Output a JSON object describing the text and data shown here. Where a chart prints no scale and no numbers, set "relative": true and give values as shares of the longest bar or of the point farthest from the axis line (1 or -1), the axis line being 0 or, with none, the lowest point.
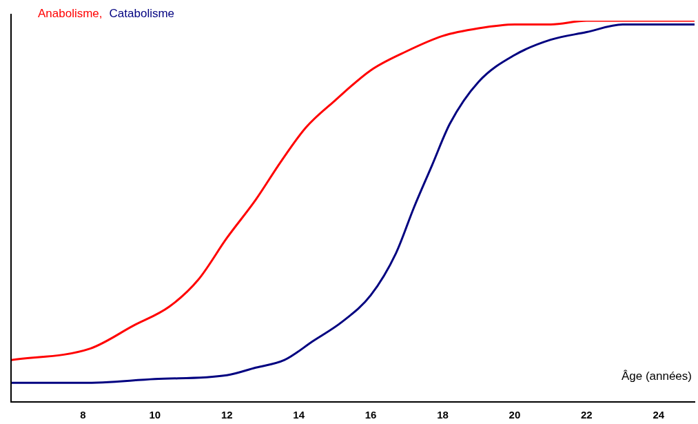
{
  "chart_data": {
    "type": "line",
    "xlabel": "Âge (années)",
    "relative": true,
    "xlim": [
      6,
      25
    ],
    "xticks": [
      8,
      10,
      12,
      14,
      16,
      18,
      20,
      22,
      24
    ],
    "grid": false,
    "legend": "top left",
    "marker": "none",
    "line_style": "solid",
    "series": [
      {
        "name": "Anabolisme,",
        "color": "#ff0000",
        "x": [
          6,
          8.2,
          9.4,
          10.4,
          11.2,
          12,
          12.8,
          13.5,
          14.2,
          15,
          16,
          17,
          18,
          19,
          20,
          21,
          22,
          25
        ],
        "values": [
          0.11,
          0.14,
          0.2,
          0.25,
          0.32,
          0.43,
          0.53,
          0.63,
          0.72,
          0.79,
          0.87,
          0.92,
          0.96,
          0.98,
          0.99,
          0.99,
          1,
          1
        ]
      },
      {
        "name": "Catabolisme",
        "color": "#000080",
        "x": [
          6,
          8,
          10,
          12,
          12.8,
          13.6,
          14.4,
          15.2,
          16,
          16.7,
          17.2,
          17.7,
          18.2,
          19,
          20,
          21,
          22,
          23,
          25
        ],
        "values": [
          0.05,
          0.05,
          0.06,
          0.07,
          0.09,
          0.11,
          0.16,
          0.21,
          0.28,
          0.39,
          0.51,
          0.62,
          0.73,
          0.84,
          0.91,
          0.95,
          0.97,
          0.99,
          0.99
        ]
      }
    ]
  }
}
